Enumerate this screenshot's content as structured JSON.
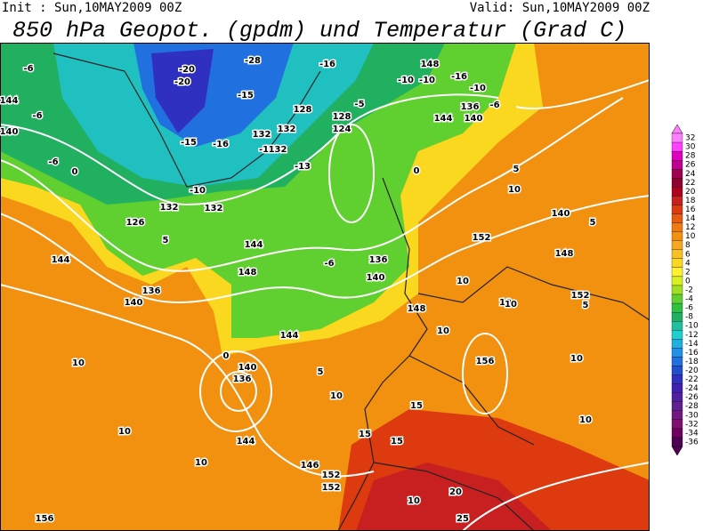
{
  "header": {
    "init": "Init : Sun,10MAY2009 00Z",
    "valid": "Valid: Sun,10MAY2009 00Z",
    "title": "850 hPa Geopot. (gpdm) und Temperatur (Grad C)"
  },
  "colorbar": {
    "labels": [
      "32",
      "30",
      "28",
      "26",
      "24",
      "22",
      "20",
      "18",
      "16",
      "14",
      "12",
      "10",
      "8",
      "6",
      "4",
      "2",
      "0",
      "-2",
      "-4",
      "-6",
      "-8",
      "-10",
      "-12",
      "-14",
      "-16",
      "-18",
      "-20",
      "-22",
      "-24",
      "-26",
      "-28",
      "-30",
      "-32",
      "-34",
      "-36"
    ],
    "colors": [
      "#ff80ff",
      "#ff40ff",
      "#e000c0",
      "#c00090",
      "#a00050",
      "#900030",
      "#b00020",
      "#c82020",
      "#dd3a10",
      "#e85a10",
      "#ee7a10",
      "#f29010",
      "#f5a820",
      "#f8c020",
      "#fad820",
      "#fff030",
      "#d8f020",
      "#a0e020",
      "#60d030",
      "#30c040",
      "#20b060",
      "#20c0a0",
      "#20d0d0",
      "#20b0e0",
      "#2090e8",
      "#2070e0",
      "#2050d0",
      "#3030c0",
      "#4020b0",
      "#5020a0",
      "#602090",
      "#701880",
      "#801070",
      "#700060",
      "#500050"
    ]
  },
  "map": {
    "labels": [
      "-6",
      "-20",
      "-20",
      "-28",
      "-16",
      "148",
      "-10",
      "-10",
      "-16",
      "-10",
      "136",
      "-6",
      "140",
      "144",
      "144",
      "-6",
      "140",
      "-15",
      "-15",
      "128",
      "128",
      "-5",
      "132",
      "-16",
      "132",
      "124",
      "-16",
      "132",
      "-13",
      "0",
      "-6",
      "-10",
      "0",
      "5",
      "132",
      "132",
      "126",
      "-6",
      "144",
      "152",
      "5",
      "140",
      "144",
      "136",
      "148",
      "136",
      "140",
      "148",
      "152",
      "5",
      "140",
      "144",
      "148",
      "5",
      "0",
      "10",
      "10",
      "10",
      "140",
      "136",
      "10",
      "10",
      "156",
      "10",
      "5",
      "10",
      "15",
      "144",
      "146",
      "15",
      "15",
      "152",
      "152",
      "10",
      "20",
      "25",
      "156",
      "10",
      "10",
      "10",
      "10"
    ]
  }
}
